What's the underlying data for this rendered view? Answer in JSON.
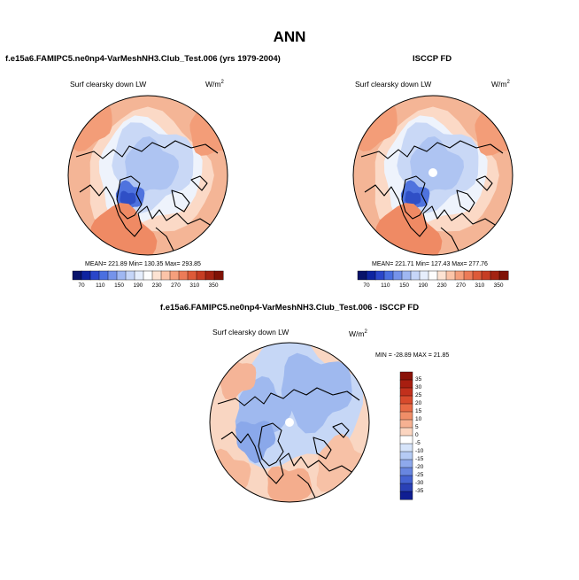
{
  "title": "ANN",
  "colors": {
    "ocean_bg": "#f4bf9e",
    "land": "#000000",
    "palette_pos": [
      "#ffffff",
      "#fde0cf",
      "#fbcbb2",
      "#f6a882",
      "#f08a60",
      "#e66a45",
      "#d24b2d",
      "#b52f1c",
      "#8a1a0e"
    ],
    "palette_neg": [
      "#ffffff",
      "#dbe8fb",
      "#c0d4f6",
      "#a0bdf0",
      "#7f9fe7",
      "#5f80dc",
      "#3f5fcf",
      "#2a40b8",
      "#141f96"
    ]
  },
  "chart_data": [
    {
      "type": "polar_contour_map",
      "title": "f.e15a6.FAMIPC5.ne0np4-VarMeshNH3.Club_Test.006 (yrs 1979-2004)",
      "variable": "Surf clearsky down LW",
      "units": "W/m",
      "units_exp": "2",
      "stats": {
        "mean": 221.89,
        "min": 130.35,
        "max": 293.85
      },
      "stats_text": "MEAN= 221.89  Min= 130.35  Max= 293.85",
      "colorbar": {
        "orientation": "horizontal",
        "levels": [
          70,
          110,
          150,
          190,
          230,
          270,
          310,
          350
        ],
        "level_labels": [
          "70",
          "110",
          "150",
          "190",
          "230",
          "270",
          "310",
          "350"
        ],
        "colors": [
          "#08136a",
          "#0e24a0",
          "#2a46c9",
          "#4a6fe0",
          "#7593ea",
          "#9fb7f2",
          "#c6d6f8",
          "#e6eefc",
          "#fdfdfd",
          "#fde3d3",
          "#fbc4a8",
          "#f59f7c",
          "#ec7b58",
          "#dd5a38",
          "#c63d23",
          "#a32312",
          "#7f1206"
        ]
      }
    },
    {
      "type": "polar_contour_map",
      "title": "ISCCP FD",
      "variable": "Surf clearsky down LW",
      "units": "W/m",
      "units_exp": "2",
      "stats": {
        "mean": 221.71,
        "min": 127.43,
        "max": 277.76
      },
      "stats_text": "MEAN= 221.71  Min= 127.43  Max= 277.76",
      "colorbar": {
        "orientation": "horizontal",
        "levels": [
          70,
          110,
          150,
          190,
          230,
          270,
          310,
          350
        ],
        "level_labels": [
          "70",
          "110",
          "150",
          "190",
          "230",
          "270",
          "310",
          "350"
        ],
        "colors": [
          "#08136a",
          "#0e24a0",
          "#2a46c9",
          "#4a6fe0",
          "#7593ea",
          "#9fb7f2",
          "#c6d6f8",
          "#e6eefc",
          "#fdfdfd",
          "#fde3d3",
          "#fbc4a8",
          "#f59f7c",
          "#ec7b58",
          "#dd5a38",
          "#c63d23",
          "#a32312",
          "#7f1206"
        ]
      }
    },
    {
      "type": "polar_contour_map",
      "title": "f.e15a6.FAMIPC5.ne0np4-VarMeshNH3.Club_Test.006 - ISCCP FD",
      "variable": "Surf clearsky down LW",
      "units": "W/m",
      "units_exp": "2",
      "stats": {
        "min": -28.89,
        "max": 21.85
      },
      "stats_text": "MIN = -28.89 MAX =  21.85",
      "colorbar": {
        "orientation": "vertical",
        "levels": [
          35,
          30,
          25,
          20,
          15,
          10,
          5,
          0,
          -5,
          -10,
          -15,
          -20,
          -25,
          -30,
          -35
        ],
        "level_labels": [
          "35",
          "30",
          "25",
          "20",
          "15",
          "10",
          "5",
          "0",
          "-5",
          "-10",
          "-15",
          "-20",
          "-25",
          "-30",
          "-35"
        ],
        "colors": [
          "#8a1208",
          "#a81e10",
          "#c2301c",
          "#d84a2c",
          "#e86a45",
          "#f08e68",
          "#f6b192",
          "#fbd5c0",
          "#ffffff",
          "#d6e4fa",
          "#b5cbf4",
          "#8ea9ec",
          "#6886e0",
          "#4563d2",
          "#2a41b6",
          "#101e92"
        ]
      }
    }
  ]
}
